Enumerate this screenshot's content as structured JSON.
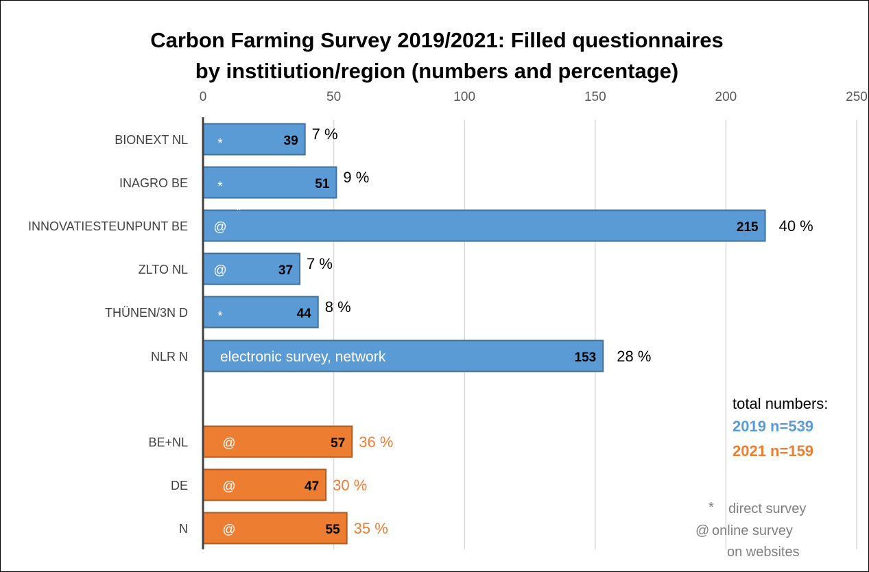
{
  "chart_data": {
    "type": "bar",
    "orientation": "horizontal",
    "title_lines": [
      "Carbon Farming Survey 2019/2021: Filled questionnaires",
      "by institiution/region (numbers and percentage)"
    ],
    "xlim": [
      0,
      250
    ],
    "x_ticks": [
      "0",
      "50",
      "100",
      "150",
      "200",
      "250"
    ],
    "grid": "vertical",
    "bars": [
      {
        "category": "BIONEXT NL",
        "value": 39,
        "value_label": "39",
        "percent": "7 %",
        "marker": "*",
        "year": "2019"
      },
      {
        "category": "INAGRO BE",
        "value": 51,
        "value_label": "51",
        "percent": "9 %",
        "marker": "*",
        "year": "2019"
      },
      {
        "category": "INNOVATIESTEUNPUNT BE",
        "value": 215,
        "value_label": "215",
        "percent": "40 %",
        "marker": "@",
        "extra_marker": "*",
        "year": "2019"
      },
      {
        "category": "ZLTO NL",
        "value": 37,
        "value_label": "37",
        "percent": "7 %",
        "marker": "@",
        "year": "2019"
      },
      {
        "category": "THÜNEN/3N D",
        "value": 44,
        "value_label": "44",
        "percent": "8 %",
        "marker": "*",
        "year": "2019"
      },
      {
        "category": "NLR N",
        "value": 153,
        "value_label": "153",
        "percent": "28 %",
        "marker": "electronic survey, network",
        "year": "2019"
      },
      {
        "category": "BE+NL",
        "value": 57,
        "value_label": "57",
        "percent": "36 %",
        "marker": "@",
        "year": "2021"
      },
      {
        "category": "DE",
        "value": 47,
        "value_label": "47",
        "percent": "30 %",
        "marker": "@",
        "year": "2021"
      },
      {
        "category": "N",
        "value": 55,
        "value_label": "55",
        "percent": "35 %",
        "marker": "@",
        "year": "2021"
      }
    ],
    "colors": {
      "2019": "#5b9bd5",
      "2021": "#ed7d31",
      "bar_border_2019": "#41719c",
      "bar_border_2021": "#ae5a21",
      "pct_2021": "#ed7d31"
    },
    "totals": {
      "label": "total numbers:",
      "lines": [
        {
          "text": "2019 n=539",
          "color": "#5b9bd5"
        },
        {
          "text": "2021 n=159",
          "color": "#ed7d31"
        }
      ]
    },
    "legend": [
      {
        "symbol": "*",
        "text": "direct survey"
      },
      {
        "symbol": "@",
        "text": "online survey"
      },
      {
        "symbol": "",
        "text": "on websites"
      }
    ]
  }
}
